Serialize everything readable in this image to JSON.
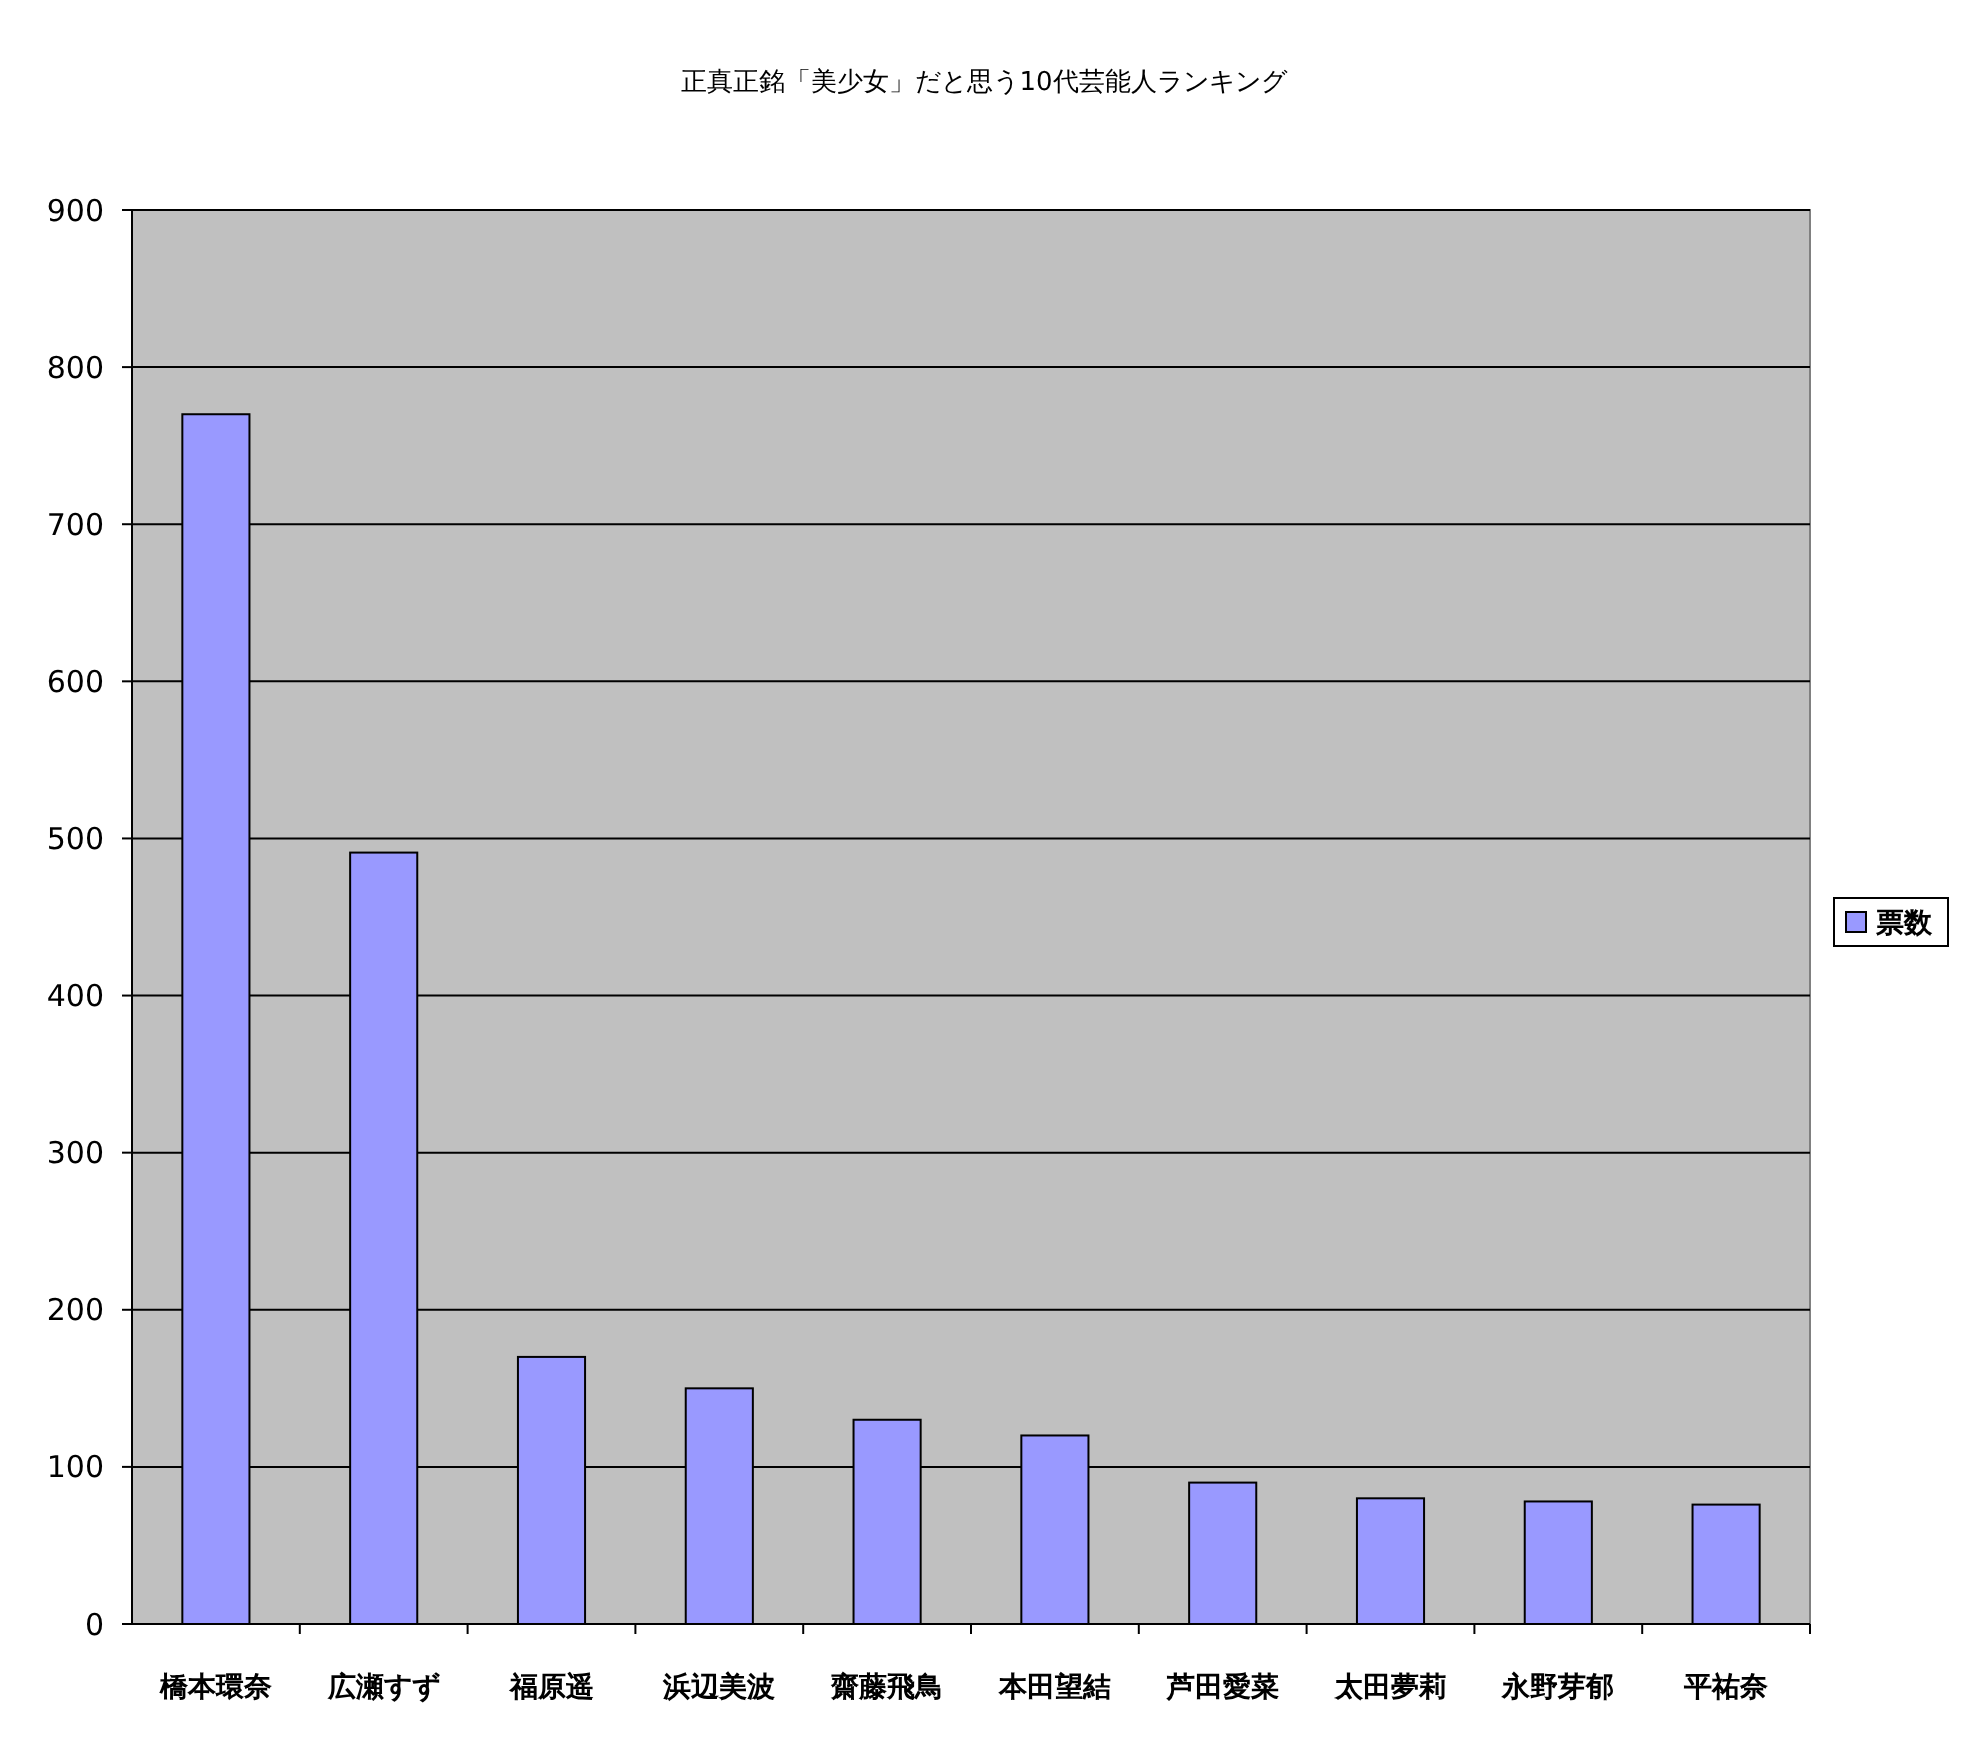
{
  "chart_data": {
    "type": "bar",
    "title": "正真正銘「美少女」だと思う10代芸能人ランキング",
    "categories": [
      "橋本環奈",
      "広瀬すず",
      "福原遥",
      "浜辺美波",
      "齋藤飛鳥",
      "本田望結",
      "芦田愛菜",
      "太田夢莉",
      "永野芽郁",
      "平祐奈"
    ],
    "series": [
      {
        "name": "票数",
        "color": "#9999ff",
        "values": [
          770,
          491,
          170,
          150,
          130,
          120,
          90,
          80,
          78,
          76
        ]
      }
    ],
    "ylim": [
      0,
      900
    ],
    "yticks": [
      0,
      100,
      200,
      300,
      400,
      500,
      600,
      700,
      800,
      900
    ],
    "grid": "y",
    "legend": "right"
  }
}
